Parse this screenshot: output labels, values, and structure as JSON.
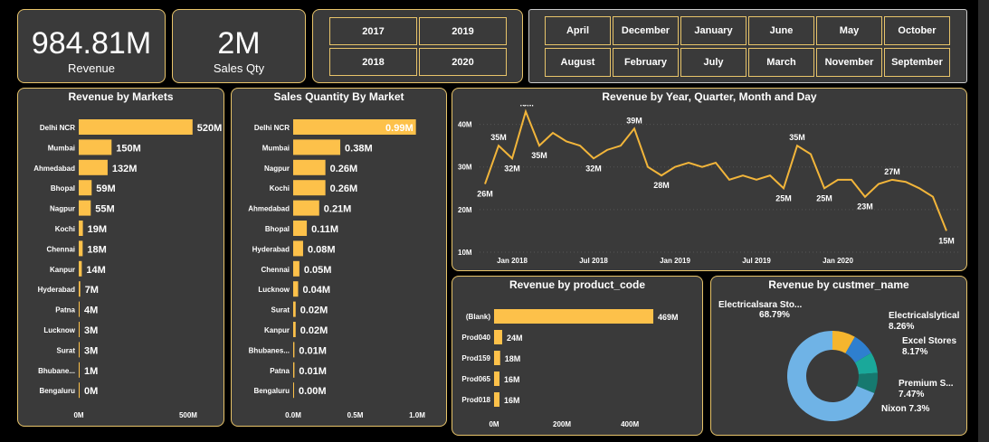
{
  "kpis": [
    {
      "value": "984.81M",
      "label": "Revenue"
    },
    {
      "value": "2M",
      "label": "Sales Qty"
    }
  ],
  "years": [
    "2017",
    "2019",
    "2018",
    "2020"
  ],
  "months": [
    "April",
    "December",
    "January",
    "June",
    "May",
    "October",
    "August",
    "February",
    "July",
    "March",
    "November",
    "September"
  ],
  "colors": {
    "accent": "#fdc14a",
    "panel": "#3a3a3a",
    "border": "#e8c46a",
    "line": "#f2b53a"
  },
  "chart_data": [
    {
      "type": "bar",
      "orientation": "horizontal",
      "title": "Revenue by Markets",
      "categories": [
        "Delhi NCR",
        "Mumbai",
        "Ahmedabad",
        "Bhopal",
        "Nagpur",
        "Kochi",
        "Chennai",
        "Kanpur",
        "Hyderabad",
        "Patna",
        "Lucknow",
        "Surat",
        "Bhubane...",
        "Bengaluru"
      ],
      "values": [
        520,
        150,
        132,
        59,
        55,
        19,
        18,
        14,
        7,
        4,
        3,
        3,
        1,
        0
      ],
      "labels": [
        "520M",
        "150M",
        "132M",
        "59M",
        "55M",
        "19M",
        "18M",
        "14M",
        "7M",
        "4M",
        "3M",
        "3M",
        "1M",
        "0M"
      ],
      "xticks": [
        "0M",
        "500M"
      ],
      "xlim": [
        0,
        620
      ]
    },
    {
      "type": "bar",
      "orientation": "horizontal",
      "title": "Sales Quantity By Market",
      "categories": [
        "Delhi NCR",
        "Mumbai",
        "Nagpur",
        "Kochi",
        "Ahmedabad",
        "Bhopal",
        "Hyderabad",
        "Chennai",
        "Lucknow",
        "Surat",
        "Kanpur",
        "Bhubanes...",
        "Patna",
        "Bengaluru"
      ],
      "values": [
        0.99,
        0.38,
        0.26,
        0.26,
        0.21,
        0.11,
        0.08,
        0.05,
        0.04,
        0.02,
        0.02,
        0.01,
        0.01,
        0.0
      ],
      "labels": [
        "0.99M",
        "0.38M",
        "0.26M",
        "0.26M",
        "0.21M",
        "0.11M",
        "0.08M",
        "0.05M",
        "0.04M",
        "0.02M",
        "0.02M",
        "0.01M",
        "0.01M",
        "0.00M"
      ],
      "xticks": [
        "0.0M",
        "0.5M",
        "1.0M"
      ],
      "xlim": [
        0,
        1.0
      ]
    },
    {
      "type": "line",
      "title": "Revenue by Year, Quarter, Month and Day",
      "values": [
        26,
        35,
        32,
        43,
        35,
        38,
        36,
        35,
        32,
        34,
        35,
        39,
        30,
        28,
        30,
        31,
        30,
        31,
        27,
        28,
        27,
        28,
        25,
        35,
        33,
        25,
        27,
        27,
        23,
        26,
        27,
        26.5,
        25,
        23,
        15
      ],
      "point_labels": [
        {
          "index": 0,
          "text": "26M"
        },
        {
          "index": 1,
          "text": "35M"
        },
        {
          "index": 2,
          "text": "32M"
        },
        {
          "index": 3,
          "text": "43M"
        },
        {
          "index": 4,
          "text": "35M"
        },
        {
          "index": 8,
          "text": "32M"
        },
        {
          "index": 11,
          "text": "39M"
        },
        {
          "index": 13,
          "text": "28M"
        },
        {
          "index": 22,
          "text": "25M"
        },
        {
          "index": 23,
          "text": "35M"
        },
        {
          "index": 25,
          "text": "25M"
        },
        {
          "index": 28,
          "text": "23M"
        },
        {
          "index": 30,
          "text": "27M"
        },
        {
          "index": 34,
          "text": "15M"
        }
      ],
      "xticks": [
        {
          "index": 2,
          "text": "Jan 2018"
        },
        {
          "index": 8,
          "text": "Jul 2018"
        },
        {
          "index": 14,
          "text": "Jan 2019"
        },
        {
          "index": 20,
          "text": "Jul 2019"
        },
        {
          "index": 26,
          "text": "Jan 2020"
        }
      ],
      "yticks": [
        10,
        20,
        30,
        40
      ],
      "ytick_labels": [
        "10M",
        "20M",
        "30M",
        "40M"
      ],
      "ylim": [
        10,
        45
      ]
    },
    {
      "type": "bar",
      "orientation": "horizontal",
      "title": "Revenue by product_code",
      "categories": [
        "(Blank)",
        "Prod040",
        "Prod159",
        "Prod065",
        "Prod018"
      ],
      "values": [
        469,
        24,
        18,
        16,
        16
      ],
      "labels": [
        "469M",
        "24M",
        "18M",
        "16M",
        "16M"
      ],
      "xticks": [
        "0M",
        "200M",
        "400M"
      ],
      "xlim": [
        0,
        469
      ]
    },
    {
      "type": "pie",
      "donut": true,
      "title": "Revenue by custmer_name",
      "labels": [
        "Electricalsara Sto...",
        "Electricalslytical",
        "Excel Stores",
        "Premium S...",
        "Nixon"
      ],
      "values": [
        68.79,
        8.26,
        8.17,
        7.47,
        7.3
      ],
      "value_labels": [
        "68.79%",
        "8.26%",
        "8.17%",
        "7.47%",
        "Nixon 7.3%"
      ],
      "colors": [
        "#6fb3e6",
        "#f5b52e",
        "#2e7fcf",
        "#1aa89a",
        "#16796f"
      ]
    }
  ]
}
